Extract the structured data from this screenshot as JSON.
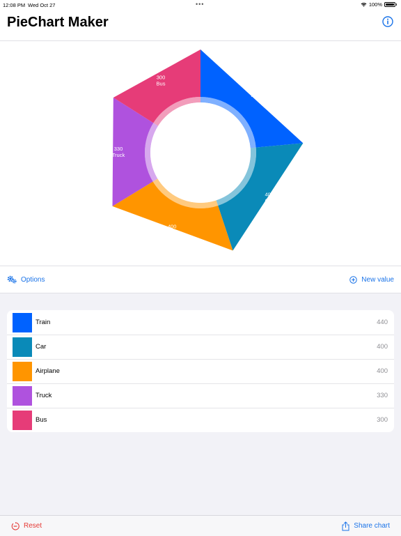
{
  "status_bar": {
    "time": "12:08 PM",
    "date": "Wed Oct 27",
    "battery": "100%"
  },
  "nav": {
    "title": "PieChart Maker",
    "info_icon": "info-circle-icon"
  },
  "chart_data": {
    "type": "pie",
    "donut": true,
    "categories": [
      "Train",
      "Car",
      "Airplane",
      "Truck",
      "Bus"
    ],
    "values": [
      440,
      400,
      400,
      330,
      300
    ],
    "colors": [
      "#0062ff",
      "#0a8ab8",
      "#ff9500",
      "#af52de",
      "#e63c78"
    ]
  },
  "actions": {
    "options_label": "Options",
    "new_value_label": "New value"
  },
  "items": [
    {
      "label": "Train",
      "value": "440",
      "color": "#0062ff"
    },
    {
      "label": "Car",
      "value": "400",
      "color": "#0a8ab8"
    },
    {
      "label": "Airplane",
      "value": "400",
      "color": "#ff9500"
    },
    {
      "label": "Truck",
      "value": "330",
      "color": "#af52de"
    },
    {
      "label": "Bus",
      "value": "300",
      "color": "#e63c78"
    }
  ],
  "toolbar": {
    "reset_label": "Reset",
    "share_label": "Share chart"
  }
}
